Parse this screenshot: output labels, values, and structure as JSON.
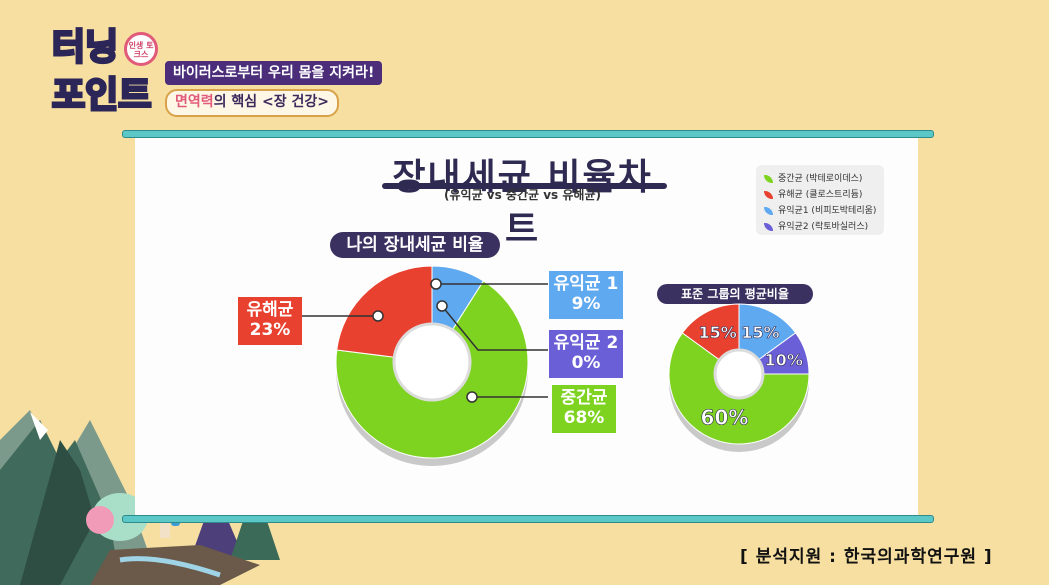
{
  "show": {
    "logo_line1": "터닝",
    "logo_line2": "포인트",
    "logo_badge": "인생 토크스",
    "subtitle_main": "바이러스로부터 우리 몸을 지켜라!",
    "subtitle_accent": "면역력",
    "subtitle_rest": "의 핵심 <장 건강>"
  },
  "chart_title": "장내세균 비율차트",
  "chart_subtitle": "(유익균 vs 중간균 vs 유해균)",
  "legend": [
    {
      "label": "중간균 (박테로이데스)",
      "color": "#7ed321"
    },
    {
      "label": "유해균 (클로스트리듐)",
      "color": "#e8412f"
    },
    {
      "label": "유익균1 (비피도박테리움)",
      "color": "#5fa9f0"
    },
    {
      "label": "유익균2 (락토바실러스)",
      "color": "#6a5fd6"
    }
  ],
  "chart_data": [
    {
      "type": "pie",
      "title": "나의 장내세균 비율",
      "slices": [
        {
          "label": "중간균",
          "value": 68,
          "display": "68%",
          "color": "#7ed321"
        },
        {
          "label": "유해균",
          "value": 23,
          "display": "23%",
          "color": "#e8412f"
        },
        {
          "label": "유익균 1",
          "value": 9,
          "display": "9%",
          "color": "#5fa9f0"
        },
        {
          "label": "유익균 2",
          "value": 0,
          "display": "0%",
          "color": "#6a5fd6"
        }
      ]
    },
    {
      "type": "pie",
      "title": "표준 그룹의 평균비율",
      "slices": [
        {
          "label": "중간균",
          "value": 60,
          "display": "60%",
          "color": "#7ed321"
        },
        {
          "label": "유해균",
          "value": 15,
          "display": "15%",
          "color": "#e8412f"
        },
        {
          "label": "유익균 1",
          "value": 15,
          "display": "15%",
          "color": "#5fa9f0"
        },
        {
          "label": "유익균 2",
          "value": 10,
          "display": "10%",
          "color": "#6a5fd6"
        }
      ]
    }
  ],
  "credit": "[ 분석지원 : 한국의과학연구원 ]"
}
